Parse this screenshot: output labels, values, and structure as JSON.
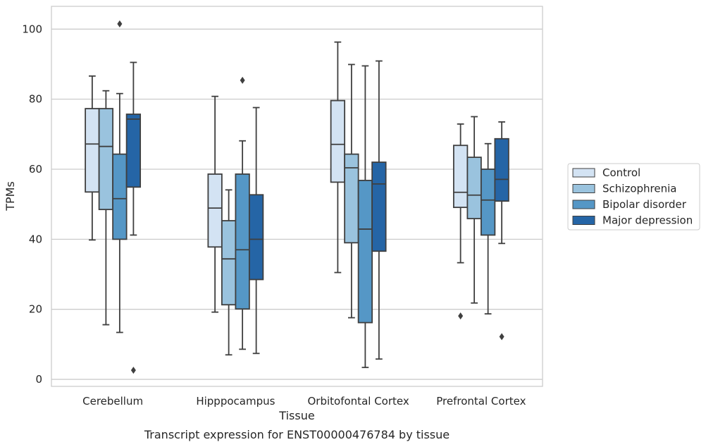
{
  "chart_data": {
    "type": "box",
    "xlabel": "Tissue",
    "ylabel": "TPMs",
    "caption": "Transcript expression for ENST00000476784 by tissue",
    "ylim": [
      -2,
      106.5
    ],
    "yticks": [
      0,
      20,
      40,
      60,
      80,
      100
    ],
    "grid": "horizontal",
    "legend_position": "right",
    "categories": [
      "Cerebellum",
      "Hipppocampus",
      "Orbitofontal Cortex",
      "Prefrontal Cortex"
    ],
    "series": [
      {
        "name": "Control",
        "color": "#d3e3f3",
        "boxes": [
          {
            "whislo": 39.8,
            "q1": 53.5,
            "med": 67.2,
            "q3": 77.3,
            "whishi": 86.6,
            "fliers": []
          },
          {
            "whislo": 19.2,
            "q1": 37.8,
            "med": 48.9,
            "q3": 58.6,
            "whishi": 80.8,
            "fliers": []
          },
          {
            "whislo": 30.5,
            "q1": 56.3,
            "med": 67.1,
            "q3": 79.6,
            "whishi": 96.3,
            "fliers": []
          },
          {
            "whislo": 33.3,
            "q1": 49.1,
            "med": 53.4,
            "q3": 66.8,
            "whishi": 72.9,
            "fliers": [
              18.1
            ]
          }
        ]
      },
      {
        "name": "Schizophrenia",
        "color": "#9ac3de",
        "boxes": [
          {
            "whislo": 15.6,
            "q1": 48.5,
            "med": 66.5,
            "q3": 77.3,
            "whishi": 82.4,
            "fliers": []
          },
          {
            "whislo": 7.0,
            "q1": 21.3,
            "med": 34.4,
            "q3": 45.3,
            "whishi": 54.1,
            "fliers": []
          },
          {
            "whislo": 17.6,
            "q1": 39.0,
            "med": 60.4,
            "q3": 64.3,
            "whishi": 89.9,
            "fliers": []
          },
          {
            "whislo": 21.8,
            "q1": 45.9,
            "med": 52.6,
            "q3": 63.4,
            "whishi": 75.0,
            "fliers": []
          }
        ]
      },
      {
        "name": "Bipolar disorder",
        "color": "#5597c6",
        "boxes": [
          {
            "whislo": 13.4,
            "q1": 40.0,
            "med": 51.6,
            "q3": 64.3,
            "whishi": 81.6,
            "fliers": [
              101.5
            ]
          },
          {
            "whislo": 8.6,
            "q1": 20.1,
            "med": 37.0,
            "q3": 58.6,
            "whishi": 68.1,
            "fliers": [
              85.4
            ]
          },
          {
            "whislo": 3.4,
            "q1": 16.2,
            "med": 42.9,
            "q3": 56.8,
            "whishi": 89.5,
            "fliers": []
          },
          {
            "whislo": 18.7,
            "q1": 41.2,
            "med": 51.2,
            "q3": 60.0,
            "whishi": 67.3,
            "fliers": []
          }
        ]
      },
      {
        "name": "Major depression",
        "color": "#2565a6",
        "boxes": [
          {
            "whislo": 41.2,
            "q1": 54.9,
            "med": 74.3,
            "q3": 75.7,
            "whishi": 90.5,
            "fliers": [
              2.6
            ]
          },
          {
            "whislo": 7.4,
            "q1": 28.5,
            "med": 40.0,
            "q3": 52.7,
            "whishi": 77.6,
            "fliers": []
          },
          {
            "whislo": 5.8,
            "q1": 36.6,
            "med": 55.8,
            "q3": 62.0,
            "whishi": 90.9,
            "fliers": []
          },
          {
            "whislo": 38.8,
            "q1": 50.9,
            "med": 57.1,
            "q3": 68.7,
            "whishi": 73.5,
            "fliers": [
              12.2
            ]
          }
        ]
      }
    ]
  }
}
